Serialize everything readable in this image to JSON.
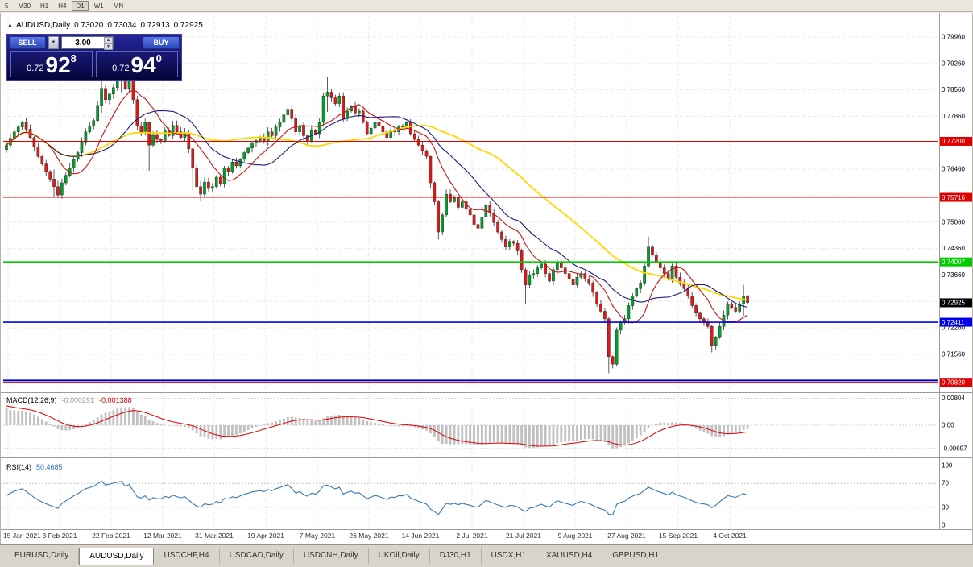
{
  "toolbar": {
    "periods": [
      "5",
      "M30",
      "H1",
      "H4",
      "D1",
      "W1",
      "MN"
    ],
    "active": "D1"
  },
  "chart_header": {
    "toggle_icon": "▲",
    "symbol": "AUDUSD,Daily",
    "open": "0.73020",
    "high": "0.73034",
    "low": "0.72913",
    "close": "0.72925"
  },
  "trade_panel": {
    "sell_label": "SELL",
    "buy_label": "BUY",
    "volume": "3.00",
    "dropdown_icon": "▼",
    "spin_up_icon": "▲",
    "spin_down_icon": "▼",
    "sell_price": {
      "prefix": "0.72",
      "big": "92",
      "sup": "8"
    },
    "buy_price": {
      "prefix": "0.72",
      "big": "94",
      "sup": "0"
    }
  },
  "price_axis_labels": [
    "0.79960",
    "0.79260",
    "0.78560",
    "0.77860",
    "0.77160",
    "0.76460",
    "0.75760",
    "0.75060",
    "0.74360",
    "0.73660",
    "0.72960",
    "0.72260",
    "0.71560"
  ],
  "levels": [
    {
      "price": 0.772,
      "label": "0.77200",
      "color": "#E00000",
      "width": 1
    },
    {
      "price": 0.75716,
      "label": "0.75716",
      "color": "#E00000",
      "width": 1
    },
    {
      "price": 0.74007,
      "label": "0.74007",
      "color": "#00CC00",
      "width": 1.6
    },
    {
      "price": 0.72411,
      "label": "0.72411",
      "color": "#0000E6",
      "width": 1.6
    },
    {
      "price": 0.7087,
      "label": "",
      "color": "#0000C8",
      "width": 2
    },
    {
      "price": 0.7082,
      "label": "0.70820",
      "color": "#E00000",
      "width": 1
    }
  ],
  "current_price": {
    "price": 0.72925,
    "label": "0.72925",
    "color": "#000000"
  },
  "chart_data": {
    "type": "candlestick",
    "title": "AUDUSD,Daily",
    "x_labels": [
      "15 Jan 2021",
      "3 Feb 2021",
      "22 Feb 2021",
      "12 Mar 2021",
      "31 Mar 2021",
      "19 Apr 2021",
      "7 May 2021",
      "26 May 2021",
      "14 Jun 2021",
      "2 Jul 2021",
      "21 Jul 2021",
      "9 Aug 2021",
      "27 Aug 2021",
      "15 Sep 2021",
      "4 Oct 2021"
    ],
    "y_range": [
      0.7058,
      0.801
    ],
    "colors": {
      "bull": "#00A02C",
      "bear": "#E01818"
    },
    "closes": [
      0.771,
      0.7728,
      0.7745,
      0.7758,
      0.777,
      0.7752,
      0.773,
      0.7705,
      0.768,
      0.766,
      0.764,
      0.762,
      0.76,
      0.7578,
      0.761,
      0.763,
      0.765,
      0.7672,
      0.769,
      0.7718,
      0.7745,
      0.776,
      0.7775,
      0.7815,
      0.786,
      0.783,
      0.7845,
      0.7862,
      0.788,
      0.7895,
      0.786,
      0.7885,
      0.783,
      0.776,
      0.7745,
      0.777,
      0.771,
      0.7738,
      0.7725,
      0.7722,
      0.775,
      0.7735,
      0.7762,
      0.7745,
      0.773,
      0.7742,
      0.77,
      0.765,
      0.76,
      0.758,
      0.7612,
      0.7595,
      0.76,
      0.7625,
      0.7608,
      0.765,
      0.764,
      0.7665,
      0.7655,
      0.7672,
      0.769,
      0.7702,
      0.7715,
      0.7722,
      0.773,
      0.772,
      0.7745,
      0.7735,
      0.7758,
      0.777,
      0.779,
      0.7805,
      0.778,
      0.7745,
      0.776,
      0.7735,
      0.772,
      0.7748,
      0.774,
      0.777,
      0.784,
      0.785,
      0.7835,
      0.782,
      0.784,
      0.778,
      0.78,
      0.7812,
      0.7795,
      0.78,
      0.777,
      0.774,
      0.7755,
      0.777,
      0.776,
      0.7745,
      0.773,
      0.775,
      0.7745,
      0.776,
      0.7758,
      0.777,
      0.774,
      0.7725,
      0.771,
      0.7695,
      0.768,
      0.761,
      0.756,
      0.748,
      0.7525,
      0.758,
      0.756,
      0.757,
      0.7545,
      0.756,
      0.754,
      0.7525,
      0.75,
      0.749,
      0.752,
      0.755,
      0.753,
      0.7505,
      0.748,
      0.746,
      0.744,
      0.7455,
      0.745,
      0.743,
      0.738,
      0.734,
      0.7365,
      0.737,
      0.7385,
      0.7395,
      0.737,
      0.735,
      0.738,
      0.74,
      0.7385,
      0.737,
      0.7355,
      0.734,
      0.736,
      0.737,
      0.7355,
      0.7345,
      0.732,
      0.729,
      0.727,
      0.725,
      0.715,
      0.713,
      0.722,
      0.724,
      0.725,
      0.7285,
      0.731,
      0.733,
      0.7345,
      0.739,
      0.744,
      0.742,
      0.74,
      0.7385,
      0.737,
      0.7355,
      0.739,
      0.736,
      0.7345,
      0.733,
      0.731,
      0.7285,
      0.7265,
      0.725,
      0.724,
      0.723,
      0.718,
      0.72,
      0.723,
      0.726,
      0.729,
      0.728,
      0.727,
      0.729,
      0.731,
      0.7293
    ],
    "wick_overrides": [
      [
        12,
        0.7645,
        0.7572
      ],
      [
        13,
        0.7615,
        0.757
      ],
      [
        24,
        0.7888,
        0.7795
      ],
      [
        29,
        0.7908,
        0.785
      ],
      [
        36,
        0.7748,
        0.7642
      ],
      [
        47,
        0.7705,
        0.759
      ],
      [
        49,
        0.7615,
        0.7562
      ],
      [
        81,
        0.7891,
        0.7798
      ],
      [
        107,
        0.7682,
        0.7595
      ],
      [
        109,
        0.7565,
        0.746
      ],
      [
        131,
        0.7385,
        0.7289
      ],
      [
        152,
        0.7255,
        0.7106
      ],
      [
        162,
        0.7468,
        0.7385
      ],
      [
        178,
        0.7235,
        0.7161
      ],
      [
        186,
        0.734,
        0.7258
      ]
    ],
    "moving_averages": [
      {
        "period": 10,
        "color": "#C81414",
        "width": 1.1
      },
      {
        "period": 20,
        "color": "#1A1A80",
        "width": 1.1
      },
      {
        "period": 45,
        "color": "#FFD800",
        "width": 1.8
      }
    ],
    "indicators": {
      "macd": {
        "label": "MACD(12,26,9)",
        "value_main": "-0.000291",
        "value_signal": "-0.001388",
        "axis_labels": [
          "0.00804",
          "0.00",
          "-0.00697"
        ],
        "hist_color": "#C0C0C0",
        "signal_color": "#E00000"
      },
      "rsi": {
        "label": "RSI(14)",
        "value": "50.4685",
        "axis_labels": [
          "100",
          "70",
          "30",
          "0"
        ],
        "levels": [
          70,
          30
        ],
        "color": "#3878B8"
      }
    }
  },
  "tabs": {
    "items": [
      "EURUSD,Daily",
      "AUDUSD,Daily",
      "USDCHF,H4",
      "USDCAD,Daily",
      "USDCNH,Daily",
      "UKOil,Daily",
      "DJ30,H1",
      "USDX,H1",
      "XAUUSD,H4",
      "GBPUSD,H1"
    ],
    "active": "AUDUSD,Daily"
  }
}
